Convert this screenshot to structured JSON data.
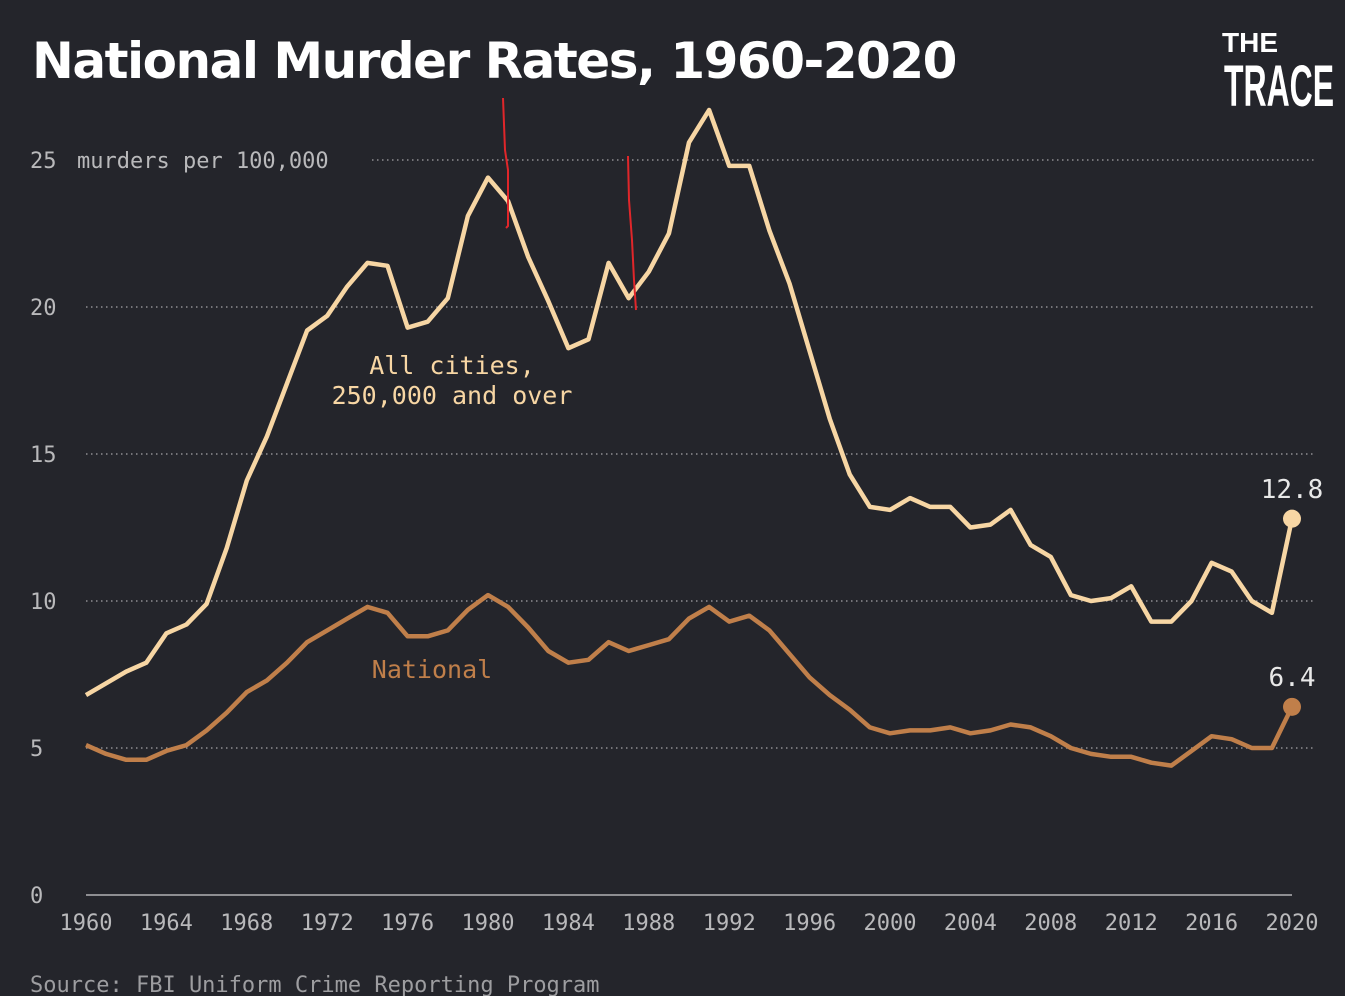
{
  "chart_data": {
    "type": "line",
    "title": "National Murder Rates, 1960-2020",
    "ylabel": "murders per 100,000",
    "xlabel": "",
    "source": "Source: FBI Uniform Crime Reporting Program",
    "logo": {
      "line1": "THE",
      "line2": "TRACE"
    },
    "xlim": [
      1960,
      2020
    ],
    "ylim": [
      0,
      25
    ],
    "x_ticks": [
      1960,
      1964,
      1968,
      1972,
      1976,
      1980,
      1984,
      1988,
      1992,
      1996,
      2000,
      2004,
      2008,
      2012,
      2016,
      2020
    ],
    "x_tick_labels": [
      "1960",
      "1964",
      "1968",
      "1972",
      "1976",
      "1980",
      "1984",
      "1988",
      "1992",
      "1996",
      "2000",
      "2004",
      "2008",
      "2012",
      "2016",
      "2020"
    ],
    "y_ticks": [
      0,
      5,
      10,
      15,
      20,
      25
    ],
    "y_tick_labels": [
      "0",
      "5",
      "10",
      "15",
      "20",
      "25"
    ],
    "grid": "horizontal dotted",
    "x": [
      1960,
      1961,
      1962,
      1963,
      1964,
      1965,
      1966,
      1967,
      1968,
      1969,
      1970,
      1971,
      1972,
      1973,
      1974,
      1975,
      1976,
      1977,
      1978,
      1979,
      1980,
      1981,
      1982,
      1983,
      1984,
      1985,
      1986,
      1987,
      1988,
      1989,
      1990,
      1991,
      1992,
      1993,
      1994,
      1995,
      1996,
      1997,
      1998,
      1999,
      2000,
      2001,
      2002,
      2003,
      2004,
      2005,
      2006,
      2007,
      2008,
      2009,
      2010,
      2011,
      2012,
      2013,
      2014,
      2015,
      2016,
      2017,
      2018,
      2019,
      2020
    ],
    "series": [
      {
        "name": "All cities, 250,000 and over",
        "label_line1": "All cities,",
        "label_line2": "250,000 and over",
        "color": "#f7d6a4",
        "end_label": "12.8",
        "values": [
          6.8,
          7.2,
          7.6,
          7.9,
          8.9,
          9.2,
          9.9,
          11.8,
          14.1,
          15.6,
          17.4,
          19.2,
          19.7,
          20.7,
          21.5,
          21.4,
          19.3,
          19.5,
          20.3,
          23.1,
          24.4,
          23.6,
          21.7,
          20.2,
          18.6,
          18.9,
          21.5,
          20.3,
          21.2,
          22.5,
          25.6,
          26.7,
          24.8,
          24.8,
          22.6,
          20.8,
          18.5,
          16.2,
          14.3,
          13.2,
          13.1,
          13.5,
          13.2,
          13.2,
          12.5,
          12.6,
          13.1,
          11.9,
          11.5,
          10.2,
          10.0,
          10.1,
          10.5,
          9.3,
          9.3,
          10.0,
          11.3,
          11.0,
          10.0,
          9.6,
          12.8
        ]
      },
      {
        "name": "National",
        "label_line1": "National",
        "color": "#c07f4a",
        "end_label": "6.4",
        "values": [
          5.1,
          4.8,
          4.6,
          4.6,
          4.9,
          5.1,
          5.6,
          6.2,
          6.9,
          7.3,
          7.9,
          8.6,
          9.0,
          9.4,
          9.8,
          9.6,
          8.8,
          8.8,
          9.0,
          9.7,
          10.2,
          9.8,
          9.1,
          8.3,
          7.9,
          8.0,
          8.6,
          8.3,
          8.5,
          8.7,
          9.4,
          9.8,
          9.3,
          9.5,
          9.0,
          8.2,
          7.4,
          6.8,
          6.3,
          5.7,
          5.5,
          5.6,
          5.6,
          5.7,
          5.5,
          5.6,
          5.8,
          5.7,
          5.4,
          5.0,
          4.8,
          4.7,
          4.7,
          4.5,
          4.4,
          4.9,
          5.4,
          5.3,
          5.0,
          5.0,
          6.4
        ]
      }
    ]
  }
}
